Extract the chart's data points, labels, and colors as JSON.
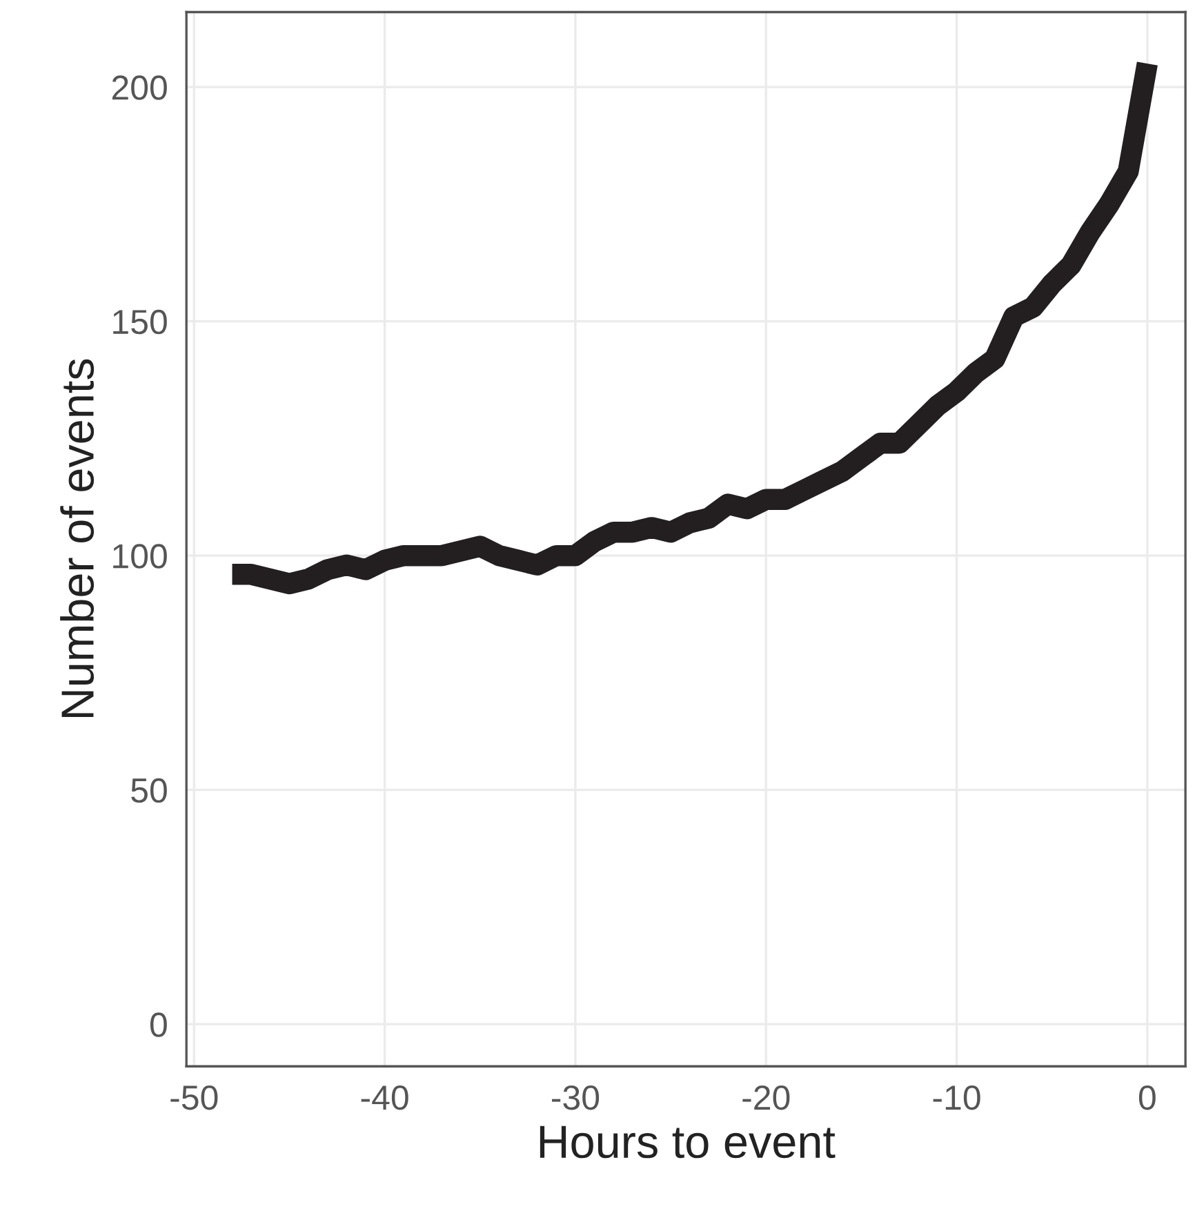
{
  "chart_data": {
    "type": "line",
    "xlabel": "Hours to event",
    "ylabel": "Number of events",
    "x": [
      -48,
      -47,
      -46,
      -45,
      -44,
      -43,
      -42,
      -41,
      -40,
      -39,
      -38,
      -37,
      -36,
      -35,
      -34,
      -33,
      -32,
      -31,
      -30,
      -29,
      -28,
      -27,
      -26,
      -25,
      -24,
      -23,
      -22,
      -21,
      -20,
      -19,
      -18,
      -17,
      -16,
      -15,
      -14,
      -13,
      -12,
      -11,
      -10,
      -9,
      -8,
      -7,
      -6,
      -5,
      -4,
      -3,
      -2,
      -1,
      0
    ],
    "series": [
      {
        "color": "#231f20",
        "values": [
          96,
          96,
          95,
          94,
          95,
          97,
          98,
          97,
          99,
          100,
          100,
          100,
          101,
          102,
          100,
          99,
          98,
          100,
          100,
          103,
          105,
          105,
          106,
          105,
          107,
          108,
          111,
          110,
          112,
          112,
          114,
          116,
          118,
          121,
          124,
          124,
          128,
          132,
          135,
          139,
          142,
          151,
          153,
          158,
          162,
          169,
          175,
          182,
          205
        ]
      }
    ],
    "xlim": [
      -50.4,
      2
    ],
    "ylim": [
      -9,
      216
    ],
    "xticks": [
      -50,
      -40,
      -30,
      -20,
      -10,
      0
    ],
    "yticks": [
      0,
      50,
      100,
      150,
      200
    ],
    "grid": true,
    "line_style": "solid",
    "marker": "none"
  }
}
